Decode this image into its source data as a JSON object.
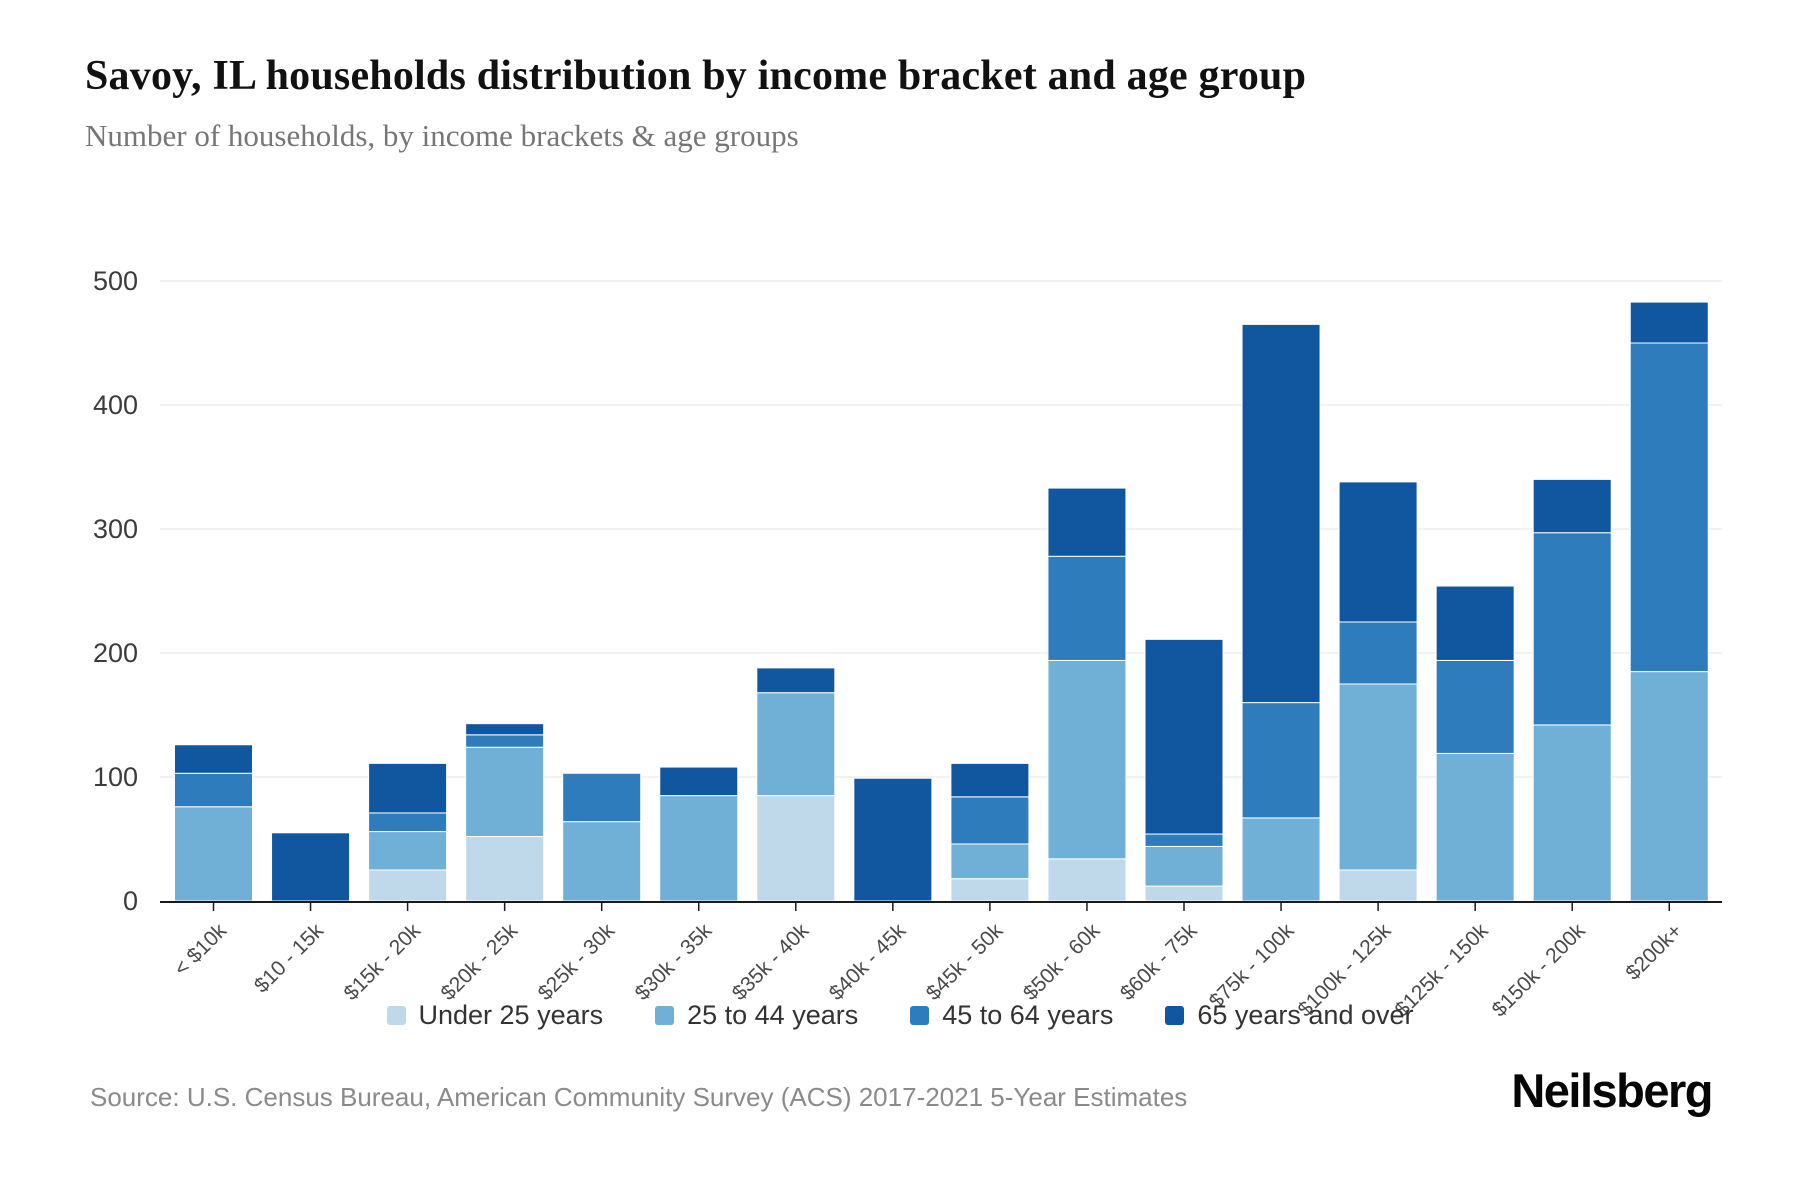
{
  "header": {
    "title": "Savoy, IL households distribution by income bracket and age group",
    "subtitle": "Number of households, by income brackets & age groups"
  },
  "chart_data": {
    "type": "bar",
    "stacked": true,
    "title": "Savoy, IL households distribution by income bracket and age group",
    "subtitle": "Number of households, by income brackets & age groups",
    "xlabel": "",
    "ylabel": "",
    "ylim": [
      0,
      500
    ],
    "yticks": [
      0,
      100,
      200,
      300,
      400,
      500
    ],
    "grid": true,
    "legend_position": "bottom",
    "categories": [
      "< $10k",
      "$10 - 15k",
      "$15k - 20k",
      "$20k - 25k",
      "$25k - 30k",
      "$30k - 35k",
      "$35k - 40k",
      "$40k - 45k",
      "$45k - 50k",
      "$50k - 60k",
      "$60k - 75k",
      "$75k - 100k",
      "$100k - 125k",
      "$125k - 150k",
      "$150k - 200k",
      "$200k+"
    ],
    "series": [
      {
        "name": "Under 25 years",
        "color": "#bfd8ea",
        "values": [
          0,
          0,
          25,
          52,
          0,
          0,
          85,
          0,
          18,
          34,
          12,
          0,
          25,
          0,
          0,
          0
        ]
      },
      {
        "name": "25 to 44 years",
        "color": "#70afd6",
        "values": [
          76,
          0,
          31,
          72,
          64,
          85,
          83,
          0,
          28,
          160,
          32,
          67,
          150,
          119,
          142,
          185
        ]
      },
      {
        "name": "45 to 64 years",
        "color": "#2f7cbd",
        "values": [
          27,
          0,
          15,
          10,
          39,
          0,
          0,
          0,
          38,
          84,
          10,
          93,
          50,
          75,
          155,
          265
        ]
      },
      {
        "name": "65 years and over",
        "color": "#10579f",
        "values": [
          23,
          55,
          40,
          9,
          0,
          23,
          20,
          99,
          27,
          55,
          157,
          305,
          113,
          60,
          43,
          33
        ]
      }
    ]
  },
  "footer": {
    "source": "Source: U.S. Census Bureau, American Community Survey (ACS) 2017-2021 5-Year Estimates",
    "logo": "Neilsberg"
  }
}
